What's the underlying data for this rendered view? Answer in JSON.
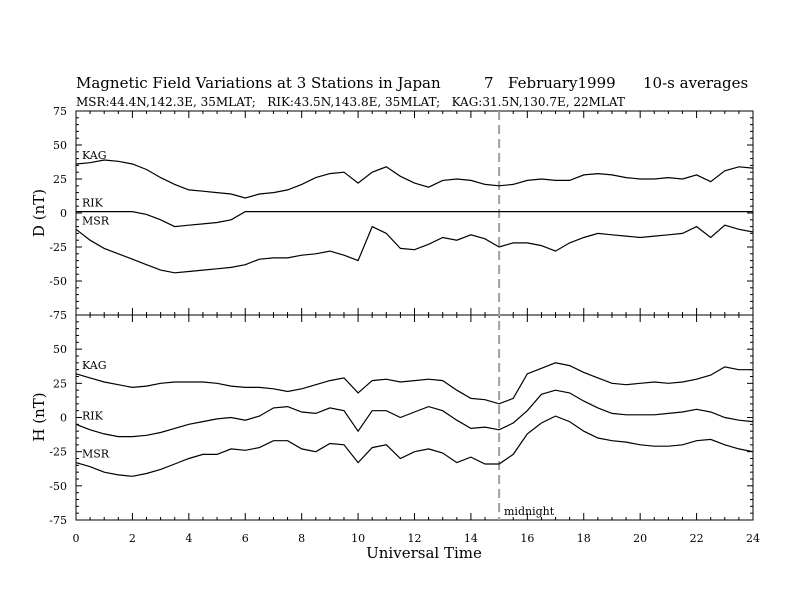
{
  "title": {
    "main": "Magnetic Field Variations at 3 Stations in Japan",
    "day": "7",
    "month_year": "February1999",
    "averaging": "10-s averages",
    "stations_line": "MSR:44.4N,142.3E, 35MLAT;   RIK:43.5N,143.8E, 35MLAT;   KAG:31.5N,130.7E, 22MLAT"
  },
  "chart_data": [
    {
      "type": "line",
      "panel": "upper",
      "ylabel": "D (nT)",
      "ylim": [
        -75,
        75
      ],
      "yticks": [
        75,
        50,
        25,
        0,
        -25,
        -50,
        -75
      ],
      "xlim": [
        0,
        24
      ],
      "x": [
        0,
        0.5,
        1,
        1.5,
        2,
        2.5,
        3,
        3.5,
        4,
        4.5,
        5,
        5.5,
        6,
        6.5,
        7,
        7.5,
        8,
        8.5,
        9,
        9.5,
        10,
        10.5,
        11,
        11.5,
        12,
        12.5,
        13,
        13.5,
        14,
        14.5,
        15,
        15.5,
        16,
        16.5,
        17,
        17.5,
        18,
        18.5,
        19,
        19.5,
        20,
        20.5,
        21,
        21.5,
        22,
        22.5,
        23,
        23.5,
        24
      ],
      "series": [
        {
          "name": "KAG",
          "values": [
            36,
            37,
            39,
            38,
            36,
            32,
            26,
            21,
            17,
            16,
            15,
            14,
            11,
            14,
            15,
            17,
            21,
            26,
            29,
            30,
            22,
            30,
            34,
            27,
            22,
            19,
            24,
            25,
            24,
            21,
            20,
            21,
            24,
            25,
            24,
            24,
            28,
            29,
            28,
            26,
            25,
            25,
            26,
            25,
            28,
            23,
            31,
            34,
            33
          ]
        },
        {
          "name": "RIK",
          "values": [
            1,
            1,
            1,
            1,
            1,
            -1,
            -5,
            -10,
            -9,
            -8,
            -7,
            -5,
            1,
            1,
            1,
            1,
            1,
            1,
            1,
            1,
            1,
            1,
            1,
            1,
            1,
            1,
            1,
            1,
            1,
            1,
            1,
            1,
            1,
            1,
            1,
            1,
            1,
            1,
            1,
            1,
            1,
            1,
            1,
            1,
            1,
            1,
            1,
            1,
            1
          ]
        },
        {
          "name": "MSR",
          "values": [
            -12,
            -20,
            -26,
            -30,
            -34,
            -38,
            -42,
            -44,
            -43,
            -42,
            -41,
            -40,
            -38,
            -34,
            -33,
            -33,
            -31,
            -30,
            -28,
            -31,
            -35,
            -10,
            -15,
            -26,
            -27,
            -23,
            -18,
            -20,
            -16,
            -19,
            -25,
            -22,
            -22,
            -24,
            -28,
            -22,
            -18,
            -15,
            -16,
            -17,
            -18,
            -17,
            -16,
            -15,
            -10,
            -18,
            -9,
            -12,
            -14
          ]
        }
      ]
    },
    {
      "type": "line",
      "panel": "lower",
      "ylabel": "H (nT)",
      "xlabel": "Universal Time",
      "ylim": [
        -75,
        75
      ],
      "yticks": [
        50,
        25,
        0,
        -25,
        -50,
        -75
      ],
      "xlim": [
        0,
        24
      ],
      "xticks": [
        0,
        2,
        4,
        6,
        8,
        10,
        12,
        14,
        16,
        18,
        20,
        22,
        24
      ],
      "x": [
        0,
        0.5,
        1,
        1.5,
        2,
        2.5,
        3,
        3.5,
        4,
        4.5,
        5,
        5.5,
        6,
        6.5,
        7,
        7.5,
        8,
        8.5,
        9,
        9.5,
        10,
        10.5,
        11,
        11.5,
        12,
        12.5,
        13,
        13.5,
        14,
        14.5,
        15,
        15.5,
        16,
        16.5,
        17,
        17.5,
        18,
        18.5,
        19,
        19.5,
        20,
        20.5,
        21,
        21.5,
        22,
        22.5,
        23,
        23.5,
        24
      ],
      "series": [
        {
          "name": "KAG",
          "values": [
            32,
            29,
            26,
            24,
            22,
            23,
            25,
            26,
            26,
            26,
            25,
            23,
            22,
            22,
            21,
            19,
            21,
            24,
            27,
            29,
            18,
            27,
            28,
            26,
            27,
            28,
            27,
            20,
            14,
            13,
            10,
            14,
            32,
            36,
            40,
            38,
            33,
            29,
            25,
            24,
            25,
            26,
            25,
            26,
            28,
            31,
            37,
            35,
            35
          ]
        },
        {
          "name": "RIK",
          "values": [
            -5,
            -9,
            -12,
            -14,
            -14,
            -13,
            -11,
            -8,
            -5,
            -3,
            -1,
            0,
            -2,
            1,
            7,
            8,
            4,
            3,
            7,
            5,
            -10,
            5,
            5,
            0,
            4,
            8,
            5,
            -2,
            -8,
            -7,
            -9,
            -4,
            5,
            17,
            20,
            18,
            12,
            7,
            3,
            2,
            2,
            2,
            3,
            4,
            6,
            4,
            0,
            -2,
            -3
          ]
        },
        {
          "name": "MSR",
          "values": [
            -33,
            -36,
            -40,
            -42,
            -43,
            -41,
            -38,
            -34,
            -30,
            -27,
            -27,
            -23,
            -24,
            -22,
            -17,
            -17,
            -23,
            -25,
            -19,
            -20,
            -33,
            -22,
            -20,
            -30,
            -25,
            -23,
            -26,
            -33,
            -29,
            -34,
            -34,
            -27,
            -12,
            -4,
            1,
            -3,
            -10,
            -15,
            -17,
            -18,
            -20,
            -21,
            -21,
            -20,
            -17,
            -16,
            -20,
            -23,
            -25
          ]
        }
      ]
    }
  ],
  "annotations": {
    "midnight_label": "midnight",
    "midnight_ut": 15
  },
  "colors": {
    "line": "#000000",
    "midnight_line": "#a0a0a0"
  }
}
